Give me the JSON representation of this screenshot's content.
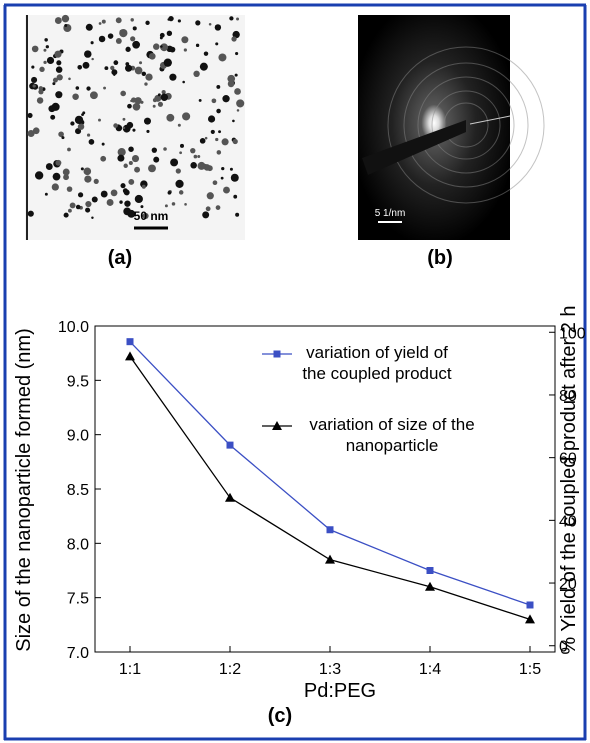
{
  "panels": {
    "a": {
      "label": "(a)",
      "scale_bar": "50 nm"
    },
    "b": {
      "label": "(b)",
      "scale_bar": "5 1/nm"
    }
  },
  "chart_data": {
    "type": "line",
    "panel_label": "(c)",
    "x_label": "Pd:PEG",
    "y_label": "Size of the nanoparticle formed (nm)",
    "y2_label": "% Yield of the coupled product after 2 h",
    "categories": [
      "1:1",
      "1:2",
      "1:3",
      "1:4",
      "1:5"
    ],
    "series": [
      {
        "name": "variation of yield of the coupled product",
        "color": "#3b4fc4",
        "marker": "square",
        "axis": "y2",
        "values": [
          97,
          64,
          37,
          24,
          13
        ]
      },
      {
        "name": "variation of size of the nanoparticle",
        "color": "#000000",
        "marker": "triangle",
        "values": [
          9.72,
          8.42,
          7.85,
          7.6,
          7.3
        ]
      }
    ],
    "ylim": [
      7.0,
      10.0
    ],
    "yticks": [
      {
        "value": 7.0,
        "label": "7.0"
      },
      7.5,
      {
        "value": 8.0,
        "label": "8.0"
      },
      8.5,
      {
        "value": 9.0,
        "label": "9.0"
      },
      9.5,
      {
        "value": 10.0,
        "label": "10.0"
      }
    ],
    "y2lim": [
      -2,
      102
    ],
    "y2ticks": [
      0,
      20,
      40,
      60,
      80,
      100
    ]
  }
}
